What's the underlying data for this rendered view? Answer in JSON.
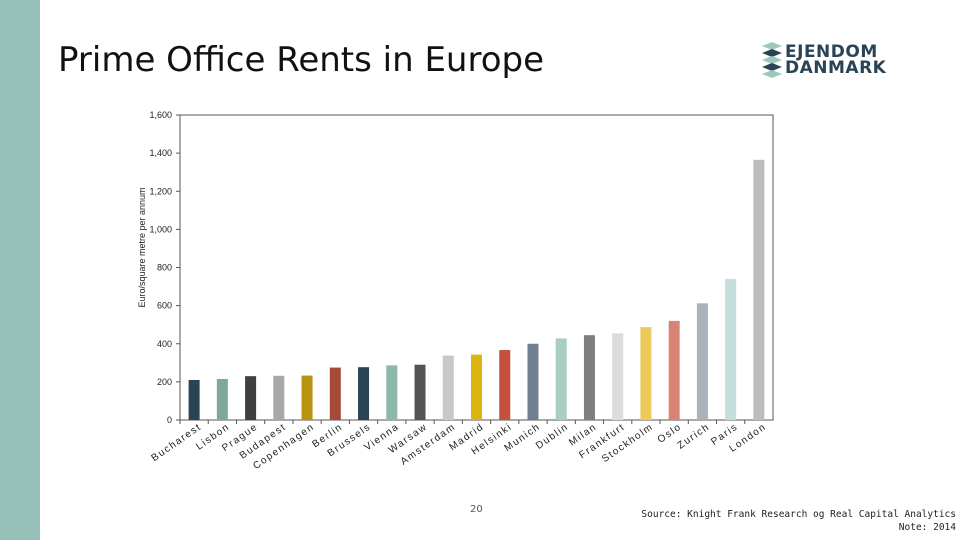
{
  "slide": {
    "title": "Prime Office Rents in Europe",
    "page_number": "20",
    "source": "Source: Knight Frank Research og Real Capital Analytics",
    "note": "Note: 2014"
  },
  "logo": {
    "line1": "EJENDOM",
    "line2": "DANMARK",
    "colors": [
      "#2a4456",
      "#9ec8be"
    ]
  },
  "chart_data": {
    "type": "bar",
    "title": "",
    "xlabel": "",
    "ylabel": "Euro/square metre per annum",
    "ylim": [
      0,
      1600
    ],
    "yticks": [
      0,
      200,
      400,
      600,
      800,
      1000,
      1200,
      1400,
      1600
    ],
    "ytick_labels": [
      "0",
      "200",
      "400",
      "600",
      "800",
      "1,000",
      "1,200",
      "1,400",
      "1,600"
    ],
    "grid": false,
    "categories": [
      "Bucharest",
      "Lisbon",
      "Prague",
      "Budapest",
      "Copenhagen",
      "Berlin",
      "Brussels",
      "Vienna",
      "Warsaw",
      "Amsterdam",
      "Madrid",
      "Helsinki",
      "Munich",
      "Dublin",
      "Milan",
      "Frankfurt",
      "Stockholm",
      "Oslo",
      "Zurich",
      "Paris",
      "London"
    ],
    "values": [
      210,
      215,
      230,
      232,
      233,
      275,
      277,
      287,
      290,
      338,
      343,
      367,
      400,
      428,
      445,
      455,
      487,
      520,
      612,
      740,
      1365
    ],
    "colors": [
      "#2a4456",
      "#7fa89d",
      "#404040",
      "#a8a8a8",
      "#b8930e",
      "#a44a37",
      "#2a4456",
      "#8fb8ad",
      "#545454",
      "#c8c8c8",
      "#ddb510",
      "#c4503d",
      "#6f7f90",
      "#a8cdc4",
      "#7f7f7f",
      "#dcdcdc",
      "#edc85a",
      "#d98375",
      "#aab1bd",
      "#c5dedb",
      "#bdbdbd"
    ]
  }
}
